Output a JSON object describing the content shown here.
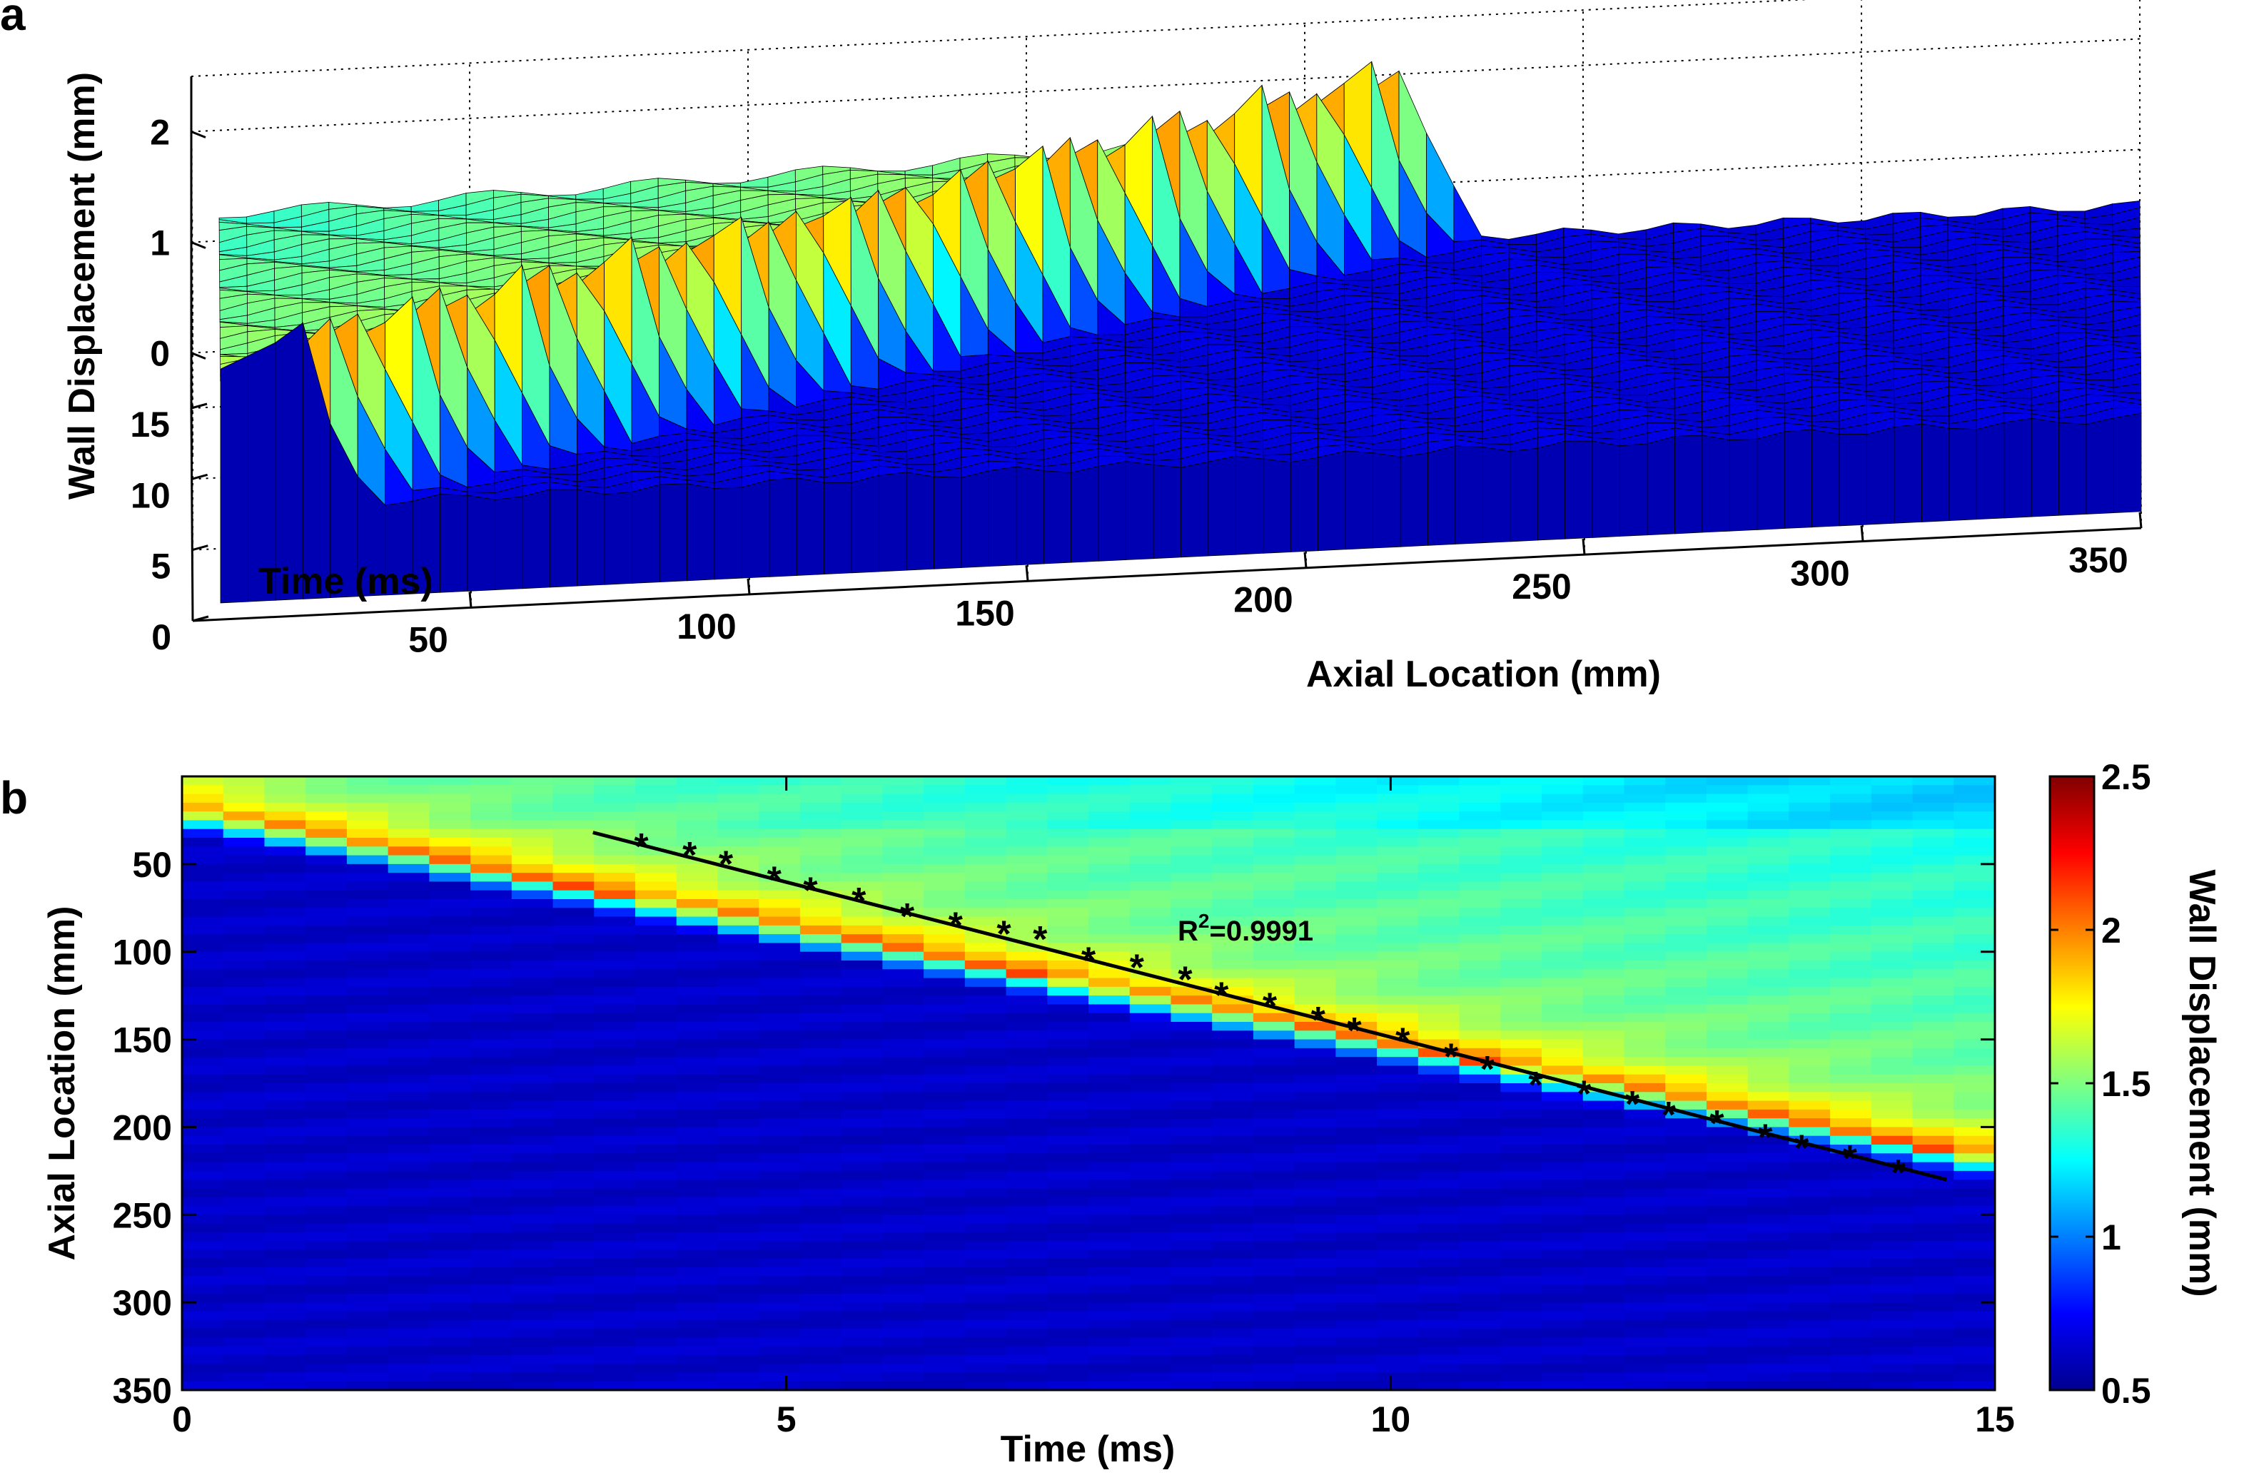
{
  "figure": {
    "panel_a_label": "a",
    "panel_b_label": "b"
  },
  "chart_data": [
    {
      "type": "surface",
      "panel": "a",
      "xlabel": "Axial Location (mm)",
      "ylabel": "Time (ms)",
      "zlabel": "Wall Displacement (mm)",
      "xlim": [
        0,
        350
      ],
      "ylim": [
        0,
        15
      ],
      "zlim": [
        -0.5,
        2.5
      ],
      "xticks": [
        "50",
        "100",
        "150",
        "200",
        "250",
        "300",
        "350"
      ],
      "yticks": [
        "0",
        "5",
        "10",
        "15"
      ],
      "zticks": [
        "0",
        "1",
        "2"
      ],
      "surface_model": {
        "baseline_mm": 0.5,
        "plateau_mm": 1.5,
        "peak_mm": 2.2,
        "wavefront_start_mm": 20,
        "wave_speed_mm_per_ms": 13.3
      },
      "colormap": "jet",
      "grid": true
    },
    {
      "type": "heatmap",
      "panel": "b",
      "xlabel": "Time (ms)",
      "ylabel": "Axial Location (mm)",
      "colorbar_label": "Wall Displacement (mm)",
      "xlim": [
        0,
        15
      ],
      "ylim": [
        350,
        0
      ],
      "xticks": [
        "0",
        "5",
        "10",
        "15"
      ],
      "yticks": [
        "50",
        "100",
        "150",
        "200",
        "250",
        "300",
        "350"
      ],
      "clim": [
        0.5,
        2.5
      ],
      "colorbar_ticks": [
        "0.5",
        "1",
        "1.5",
        "2",
        "2.5"
      ],
      "colormap": "jet",
      "wavefront_markers": {
        "time_ms": [
          3.8,
          4.2,
          4.5,
          4.9,
          5.2,
          5.6,
          6.0,
          6.4,
          6.8,
          7.1,
          7.5,
          7.9,
          8.3,
          8.6,
          9.0,
          9.4,
          9.7,
          10.1,
          10.5,
          10.8,
          11.2,
          11.6,
          12.0,
          12.3,
          12.7,
          13.1,
          13.4,
          13.8,
          14.2
        ],
        "axial_location_mm": [
          39,
          44,
          49,
          58,
          64,
          70,
          79,
          84,
          89,
          92,
          104,
          108,
          115,
          124,
          130,
          138,
          144,
          150,
          159,
          166,
          175,
          180,
          186,
          192,
          197,
          205,
          211,
          217,
          225
        ]
      },
      "fit_line": {
        "time_ms": [
          3.4,
          14.6
        ],
        "axial_location_mm": [
          32,
          230
        ]
      },
      "annotation": {
        "prefix": "R",
        "superscript": "2",
        "suffix": "=0.9991"
      }
    }
  ]
}
